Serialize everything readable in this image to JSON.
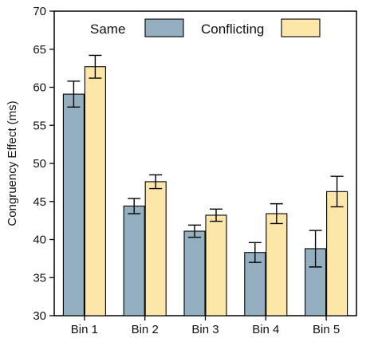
{
  "chart_data": {
    "type": "bar",
    "categories": [
      "Bin 1",
      "Bin 2",
      "Bin 3",
      "Bin 4",
      "Bin 5"
    ],
    "series": [
      {
        "name": "Same",
        "color": "#94b0c0",
        "values": [
          59.1,
          44.4,
          41.1,
          38.3,
          38.8
        ],
        "error": [
          1.7,
          1.0,
          0.8,
          1.3,
          2.4
        ]
      },
      {
        "name": "Conflicting",
        "color": "#fde7a8",
        "values": [
          62.7,
          47.6,
          43.2,
          43.4,
          46.3
        ],
        "error": [
          1.5,
          0.9,
          0.8,
          1.3,
          2.0
        ]
      }
    ],
    "ylabel": "Congruency Effect (ms)",
    "xlabel": "",
    "ylim": [
      30,
      70
    ],
    "yticks": [
      30,
      35,
      40,
      45,
      50,
      55,
      60,
      65,
      70
    ],
    "grid": false,
    "legend_position": "top"
  }
}
